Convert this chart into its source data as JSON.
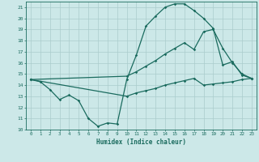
{
  "xlabel": "Humidex (Indice chaleur)",
  "xlim": [
    -0.5,
    23.5
  ],
  "ylim": [
    10,
    21.5
  ],
  "yticks": [
    10,
    11,
    12,
    13,
    14,
    15,
    16,
    17,
    18,
    19,
    20,
    21
  ],
  "xticks": [
    0,
    1,
    2,
    3,
    4,
    5,
    6,
    7,
    8,
    9,
    10,
    11,
    12,
    13,
    14,
    15,
    16,
    17,
    18,
    19,
    20,
    21,
    22,
    23
  ],
  "bg_color": "#cce8e8",
  "grid_color": "#aacccc",
  "line_color": "#1a6b5e",
  "line1_x": [
    0,
    1,
    2,
    3,
    4,
    5,
    6,
    7,
    8,
    9,
    10,
    11,
    12,
    13,
    14,
    15,
    16,
    17,
    18,
    19,
    20,
    21,
    22,
    23
  ],
  "line1_y": [
    14.5,
    14.3,
    13.6,
    12.7,
    13.1,
    12.6,
    11.0,
    10.3,
    10.6,
    10.5,
    14.5,
    16.7,
    19.3,
    20.2,
    21.0,
    21.3,
    21.3,
    20.7,
    20.0,
    19.1,
    15.8,
    16.1,
    14.9,
    14.6
  ],
  "line2_x": [
    0,
    10,
    11,
    12,
    13,
    14,
    15,
    16,
    17,
    18,
    19,
    20,
    21,
    22,
    23
  ],
  "line2_y": [
    14.5,
    14.8,
    15.2,
    15.7,
    16.2,
    16.8,
    17.3,
    17.8,
    17.2,
    18.8,
    19.0,
    17.3,
    16.0,
    15.0,
    14.6
  ],
  "line3_x": [
    0,
    10,
    11,
    12,
    13,
    14,
    15,
    16,
    17,
    18,
    19,
    20,
    21,
    22,
    23
  ],
  "line3_y": [
    14.5,
    13.0,
    13.3,
    13.5,
    13.7,
    14.0,
    14.2,
    14.4,
    14.6,
    14.0,
    14.1,
    14.2,
    14.3,
    14.5,
    14.6
  ]
}
